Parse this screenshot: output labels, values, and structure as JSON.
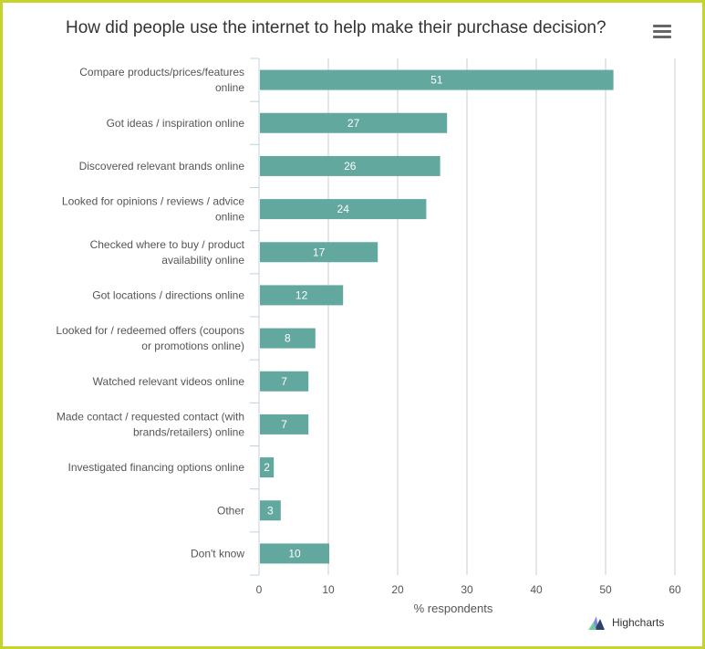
{
  "title": "How did people use the internet to help make their purchase decision?",
  "credits": "Highcharts",
  "icons": {
    "menu": "hamburger-menu-icon",
    "logo": "highcharts-logo-icon"
  },
  "colors": {
    "bar": "#62a89e",
    "border": "#c6d22e",
    "grid": "#cccccc",
    "label_text": "#ffffff"
  },
  "chart_data": {
    "type": "bar",
    "orientation": "horizontal",
    "categories": [
      [
        "Compare products/prices/features",
        "online"
      ],
      [
        "Got ideas / inspiration online"
      ],
      [
        "Discovered relevant brands online"
      ],
      [
        "Looked for opinions / reviews / advice",
        "online"
      ],
      [
        "Checked where to buy / product",
        "availability online"
      ],
      [
        "Got locations / directions online"
      ],
      [
        "Looked for / redeemed offers (coupons",
        "or promotions online)"
      ],
      [
        "Watched relevant videos online"
      ],
      [
        "Made contact / requested contact (with",
        "brands/retailers) online"
      ],
      [
        "Investigated financing options online"
      ],
      [
        "Other"
      ],
      [
        "Don't know"
      ]
    ],
    "values": [
      51,
      27,
      26,
      24,
      17,
      12,
      8,
      7,
      7,
      2,
      3,
      10
    ],
    "xlabel": "% respondents",
    "xlim": [
      0,
      60
    ],
    "ticks": [
      0,
      10,
      20,
      30,
      40,
      50,
      60
    ],
    "grid": true,
    "data_labels": true
  }
}
